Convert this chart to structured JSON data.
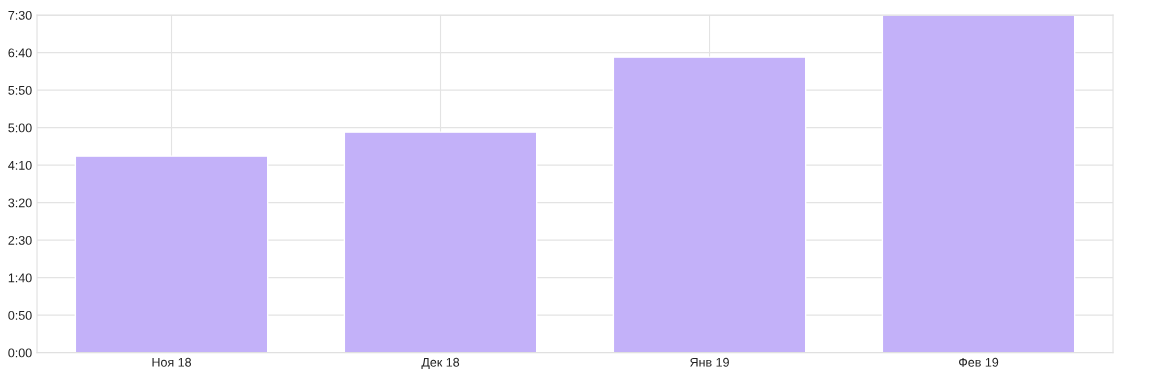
{
  "chart_data": {
    "type": "bar",
    "categories": [
      "Ноя 18",
      "Дек 18",
      "Янв 19",
      "Фев 19"
    ],
    "values": [
      262,
      294,
      394,
      450
    ],
    "color": "#c3b1f9",
    "ylim": [
      0,
      450
    ],
    "yticks": [
      {
        "value": 0,
        "label": "0:00"
      },
      {
        "value": 50,
        "label": "0:50"
      },
      {
        "value": 100,
        "label": "1:40"
      },
      {
        "value": 150,
        "label": "2:30"
      },
      {
        "value": 200,
        "label": "3:20"
      },
      {
        "value": 250,
        "label": "4:10"
      },
      {
        "value": 300,
        "label": "5:00"
      },
      {
        "value": 350,
        "label": "5:50"
      },
      {
        "value": 400,
        "label": "6:40"
      },
      {
        "value": 450,
        "label": "7:30"
      }
    ],
    "grid": true
  }
}
